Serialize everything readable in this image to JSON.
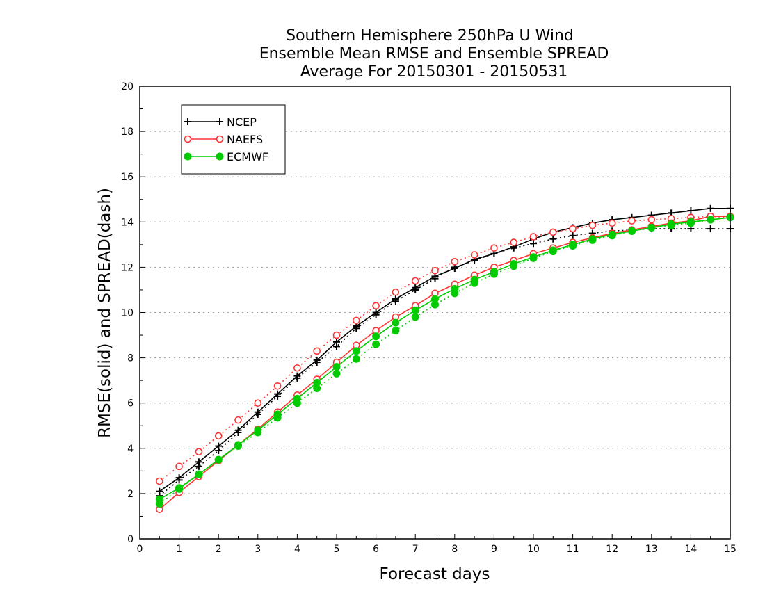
{
  "chart_data": {
    "type": "line",
    "title_lines": [
      "Southern Hemisphere 250hPa U Wind",
      "Ensemble Mean RMSE and Ensemble SPREAD",
      "Average For 20150301 - 20150531"
    ],
    "xlabel": "Forecast days",
    "ylabel": "RMSE(solid) and SPREAD(dash)",
    "xlim": [
      0,
      15
    ],
    "ylim": [
      0,
      20
    ],
    "x_ticks": [
      "0",
      "1",
      "2",
      "3",
      "4",
      "5",
      "6",
      "7",
      "8",
      "9",
      "10",
      "11",
      "12",
      "13",
      "14",
      "15"
    ],
    "y_ticks": [
      "0",
      "2",
      "4",
      "6",
      "8",
      "10",
      "12",
      "14",
      "16",
      "18",
      "20"
    ],
    "grid": "horizontal dotted",
    "legend_position": "top-left",
    "x": [
      0.5,
      1,
      1.5,
      2,
      2.5,
      3,
      3.5,
      4,
      4.5,
      5,
      5.5,
      6,
      6.5,
      7,
      7.5,
      8,
      8.5,
      9,
      9.5,
      10,
      10.5,
      11,
      11.5,
      12,
      12.5,
      13,
      13.5,
      14,
      14.5,
      15
    ],
    "series": [
      {
        "name": "NCEP",
        "color": "#000000",
        "marker": "plus",
        "rmse": [
          2.1,
          2.7,
          3.4,
          4.1,
          4.8,
          5.6,
          6.4,
          7.2,
          7.9,
          8.7,
          9.4,
          10.0,
          10.6,
          11.1,
          11.6,
          11.95,
          12.35,
          12.6,
          12.9,
          13.25,
          13.55,
          13.75,
          13.95,
          14.1,
          14.2,
          14.3,
          14.4,
          14.5,
          14.6,
          14.6
        ],
        "spread": [
          1.9,
          2.6,
          3.2,
          3.9,
          4.7,
          5.5,
          6.3,
          7.1,
          7.8,
          8.5,
          9.3,
          9.9,
          10.5,
          11.0,
          11.5,
          12.0,
          12.3,
          12.6,
          12.85,
          13.05,
          13.25,
          13.4,
          13.5,
          13.6,
          13.65,
          13.7,
          13.7,
          13.7,
          13.7,
          13.7
        ]
      },
      {
        "name": "NAEFS",
        "color": "#ff3333",
        "marker": "open-circle",
        "rmse": [
          1.3,
          2.05,
          2.75,
          3.45,
          4.15,
          4.85,
          5.6,
          6.35,
          7.05,
          7.8,
          8.55,
          9.2,
          9.8,
          10.3,
          10.85,
          11.25,
          11.65,
          12.0,
          12.3,
          12.6,
          12.85,
          13.1,
          13.3,
          13.5,
          13.65,
          13.8,
          13.95,
          14.05,
          14.25,
          14.25
        ],
        "spread": [
          2.55,
          3.2,
          3.85,
          4.55,
          5.25,
          6.0,
          6.75,
          7.55,
          8.3,
          9.0,
          9.65,
          10.3,
          10.9,
          11.4,
          11.85,
          12.25,
          12.55,
          12.85,
          13.1,
          13.35,
          13.55,
          13.7,
          13.85,
          13.95,
          14.05,
          14.1,
          14.15,
          14.2,
          14.25,
          14.2
        ]
      },
      {
        "name": "ECMWF",
        "color": "#00cc00",
        "marker": "filled-circle",
        "rmse": [
          1.75,
          2.25,
          2.85,
          3.5,
          4.15,
          4.8,
          5.5,
          6.2,
          6.9,
          7.6,
          8.3,
          8.95,
          9.55,
          10.1,
          10.6,
          11.05,
          11.45,
          11.8,
          12.15,
          12.45,
          12.75,
          13.0,
          13.25,
          13.45,
          13.6,
          13.75,
          13.9,
          14.0,
          14.1,
          14.2
        ],
        "spread": [
          1.55,
          2.2,
          2.85,
          3.5,
          4.1,
          4.7,
          5.35,
          6.0,
          6.65,
          7.3,
          7.95,
          8.6,
          9.2,
          9.8,
          10.35,
          10.85,
          11.3,
          11.7,
          12.05,
          12.4,
          12.7,
          12.95,
          13.2,
          13.4,
          13.6,
          13.75,
          13.85,
          13.95,
          14.1,
          14.2
        ]
      }
    ]
  }
}
